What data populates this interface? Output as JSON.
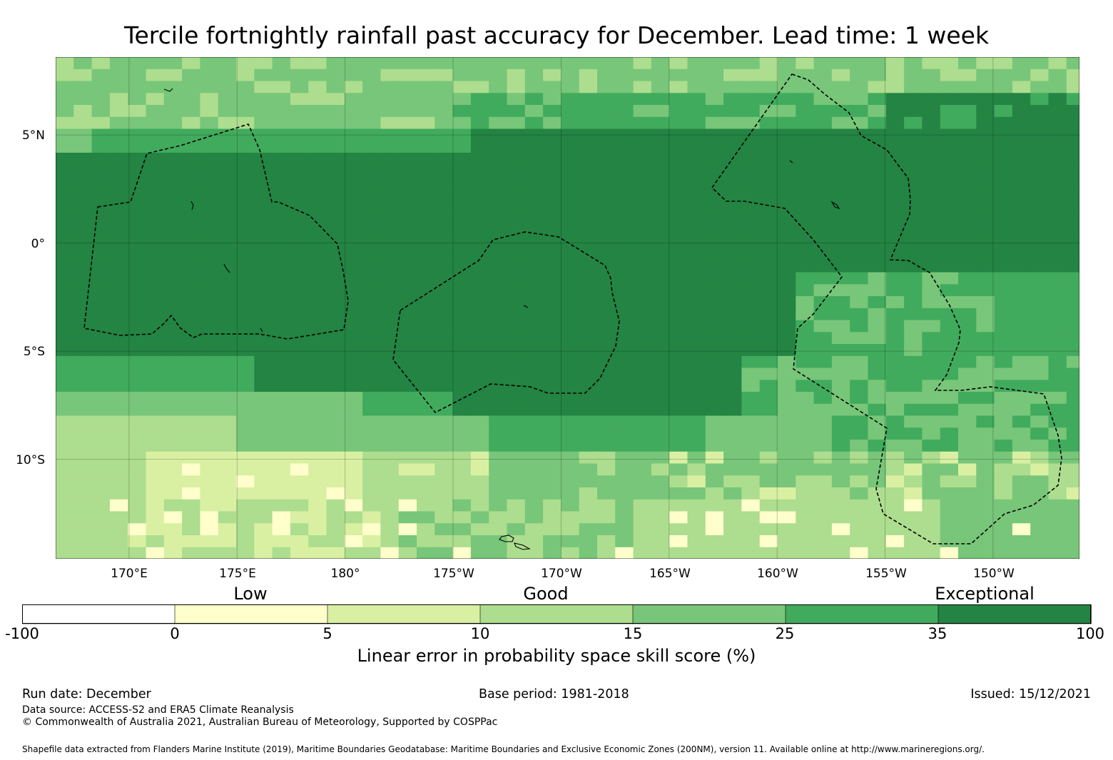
{
  "title": "Tercile fortnightly rainfall past accuracy for December. Lead time: 1 week",
  "map": {
    "lat_labels": [
      "5°N",
      "0°",
      "5°S",
      "10°S"
    ],
    "lon_labels": [
      "170°E",
      "175°E",
      "180°",
      "175°W",
      "170°W",
      "165°W",
      "160°W",
      "155°W",
      "150°W"
    ],
    "extent": {
      "lon_min": 166.6,
      "lon_max": 214.0,
      "lat_min": -14.6,
      "lat_max": 8.6
    }
  },
  "legend": {
    "categories": [
      "Low",
      "Good",
      "Exceptional"
    ],
    "ticks": [
      "-100",
      "0",
      "5",
      "10",
      "15",
      "25",
      "35",
      "100"
    ],
    "colors": [
      "#ffffff",
      "#ffffcc",
      "#d9f0a3",
      "#addd8e",
      "#78c679",
      "#41ab5d",
      "#238443"
    ],
    "label": "Linear error in probability space skill score (%)"
  },
  "footer": {
    "run_date": "Run date: December",
    "base_period": "Base period: 1981-2018",
    "issued": "Issued: 15/12/2021",
    "data_source": "Data source: ACCESS-S2 and ERA5 Climate Reanalysis",
    "copyright": "© Commonwealth of Australia 2021, Australian Bureau of Meteorology, Supported by COSPPac",
    "shapefile": "Shapefile data extracted from Flanders Marine Institute (2019), Maritime Boundaries Geodatabase: Maritime Boundaries and Exclusive Economic Zones (200NM), version 11. Available online at http://www.marineregions.org/."
  }
}
